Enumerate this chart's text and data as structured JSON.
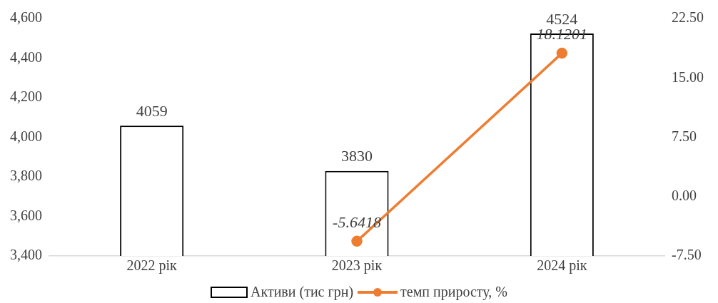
{
  "chart_data": {
    "type": "bar",
    "categories": [
      "2022 рік",
      "2023 рік",
      "2024 рік"
    ],
    "series": [
      {
        "name": "Активи (тис грн)",
        "color": "#ffffff",
        "values": [
          4059,
          3830,
          4524
        ]
      },
      {
        "name": "темп приросту, %",
        "type": "line",
        "axis": "y2",
        "color": "#ed7d31",
        "values": [
          null,
          -5.6418,
          18.1201
        ]
      }
    ],
    "ylim": [
      3400,
      4600
    ],
    "yticks": [
      {
        "value": 3400,
        "label": "3,400"
      },
      {
        "value": 3600,
        "label": "3,600"
      },
      {
        "value": 3800,
        "label": "3,800"
      },
      {
        "value": 4000,
        "label": "4,000"
      },
      {
        "value": 4200,
        "label": "4,200"
      },
      {
        "value": 4400,
        "label": "4,400"
      },
      {
        "value": 4600,
        "label": "4,600"
      }
    ],
    "y2lim": [
      -7.5,
      22.5
    ],
    "y2ticks": [
      {
        "value": -7.5,
        "label": "-7.50"
      },
      {
        "value": 0,
        "label": "0.00"
      },
      {
        "value": 7.5,
        "label": "7.50"
      },
      {
        "value": 15,
        "label": "15.00"
      },
      {
        "value": 22.5,
        "label": "22.50"
      }
    ],
    "data_labels": true,
    "grid": false,
    "legend": "bottom",
    "marker": "circle"
  }
}
